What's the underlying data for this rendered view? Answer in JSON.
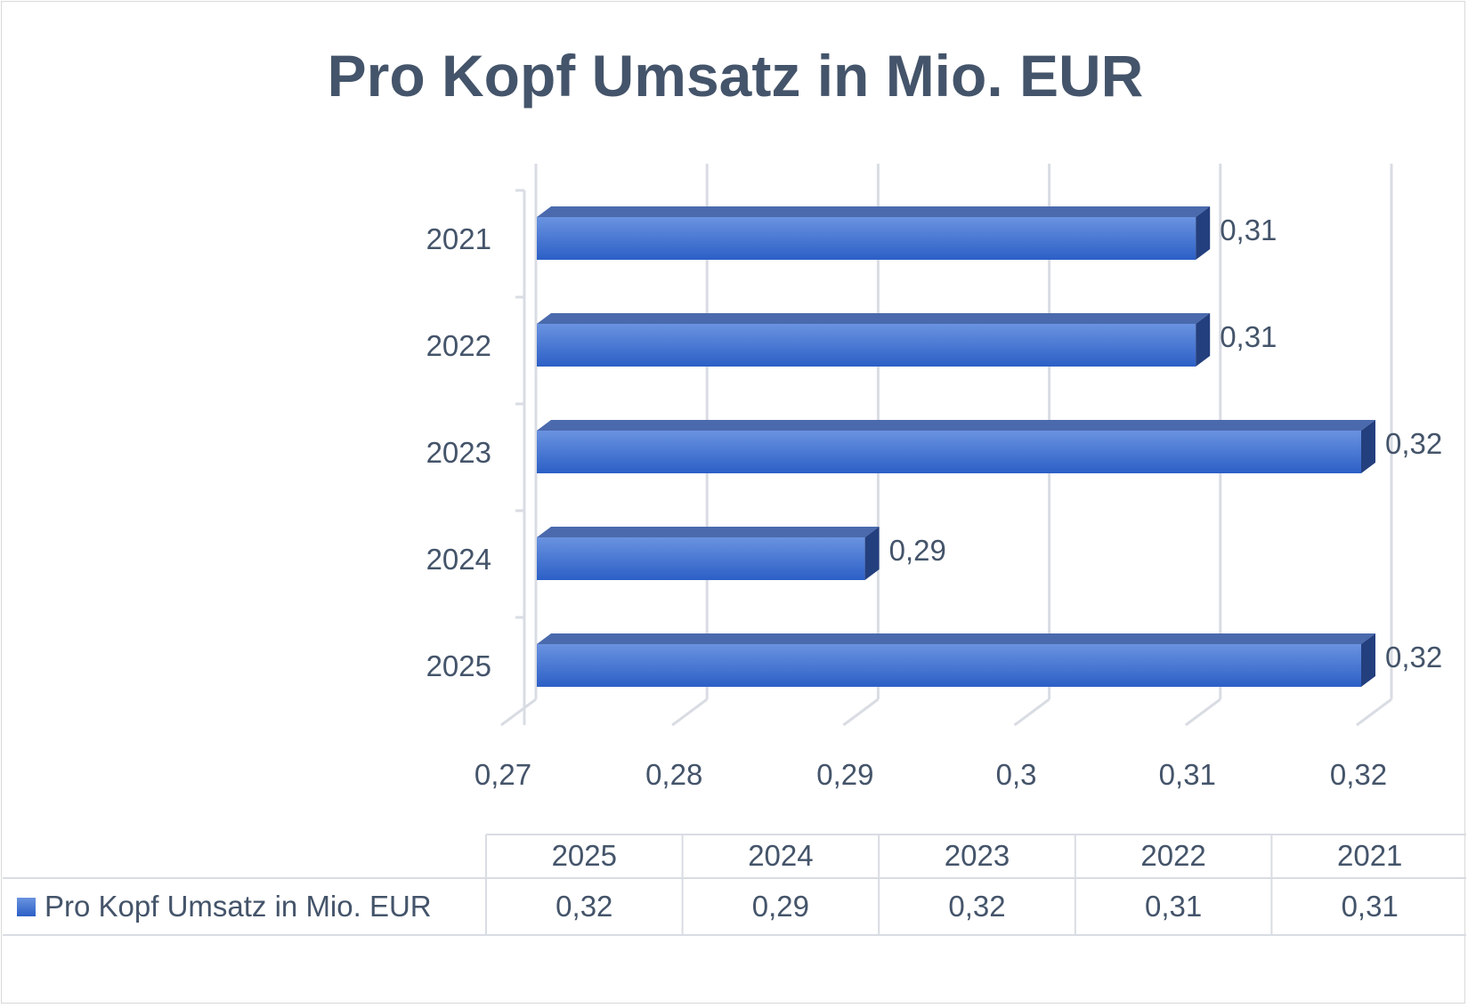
{
  "chart_data": {
    "type": "bar",
    "orientation": "horizontal",
    "style": "3d",
    "title": "Pro Kopf Umsatz in Mio. EUR",
    "categories": [
      "2021",
      "2022",
      "2023",
      "2024",
      "2025"
    ],
    "series": [
      {
        "name": "Pro Kopf Umsatz in Mio. EUR",
        "values": [
          0.31,
          0.31,
          0.32,
          0.29,
          0.32
        ],
        "color": "#3a6fd0"
      }
    ],
    "data_labels": [
      "0,31",
      "0,31",
      "0,32",
      "0,29",
      "0,32"
    ],
    "xlim": [
      0.27,
      0.32
    ],
    "x_ticks": [
      0.27,
      0.28,
      0.29,
      0.3,
      0.31,
      0.32
    ],
    "x_tick_labels": [
      "0,27",
      "0,28",
      "0,29",
      "0,3",
      "0,31",
      "0,32"
    ],
    "grid": true,
    "data_table": {
      "headers": [
        "2025",
        "2024",
        "2023",
        "2022",
        "2021"
      ],
      "values": [
        "0,32",
        "0,29",
        "0,32",
        "0,31",
        "0,31"
      ]
    },
    "colors": {
      "text": "#44546a",
      "bar": "#3a6fd0",
      "grid": "#d9dce3"
    }
  }
}
